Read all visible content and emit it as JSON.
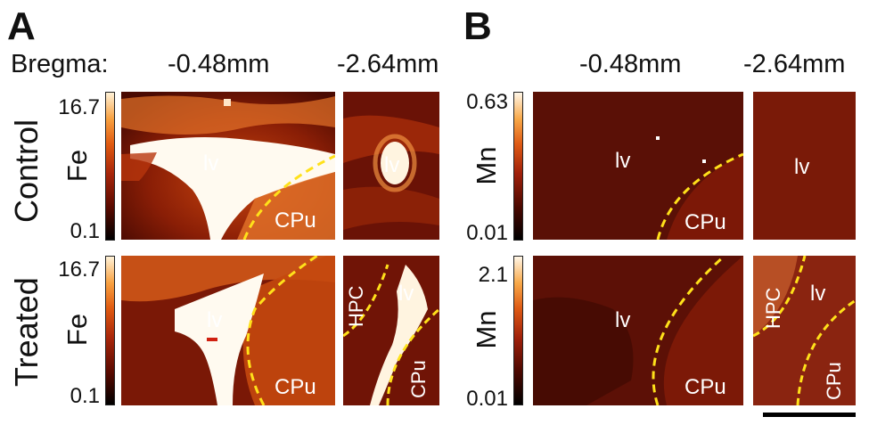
{
  "panels": {
    "a": {
      "letter": "A"
    },
    "b": {
      "letter": "B"
    }
  },
  "header": {
    "bregma_label": "Bregma:",
    "a_pos1": "-0.48mm",
    "a_pos2": "-2.64mm",
    "b_pos1": "-0.48mm",
    "b_pos2": "-2.64mm"
  },
  "rows": {
    "control": "Control",
    "treated": "Treated"
  },
  "elements": {
    "fe": "Fe",
    "mn": "Mn"
  },
  "colorbars": {
    "fe_control": {
      "max": "16.7",
      "min": "0.1"
    },
    "fe_treated": {
      "max": "16.7",
      "min": "0.1"
    },
    "mn_control": {
      "max": "0.63",
      "min": "0.01"
    },
    "mn_treated": {
      "max": "2.1",
      "min": "0.01"
    }
  },
  "region_labels": {
    "lv": "lv",
    "cpu": "CPu",
    "hpc": "HPC"
  },
  "colors": {
    "boundary": "#ffe11a",
    "fe_dark": "#4a0a02",
    "fe_mid": "#b0300c",
    "mn_bg": "#6a1408"
  }
}
